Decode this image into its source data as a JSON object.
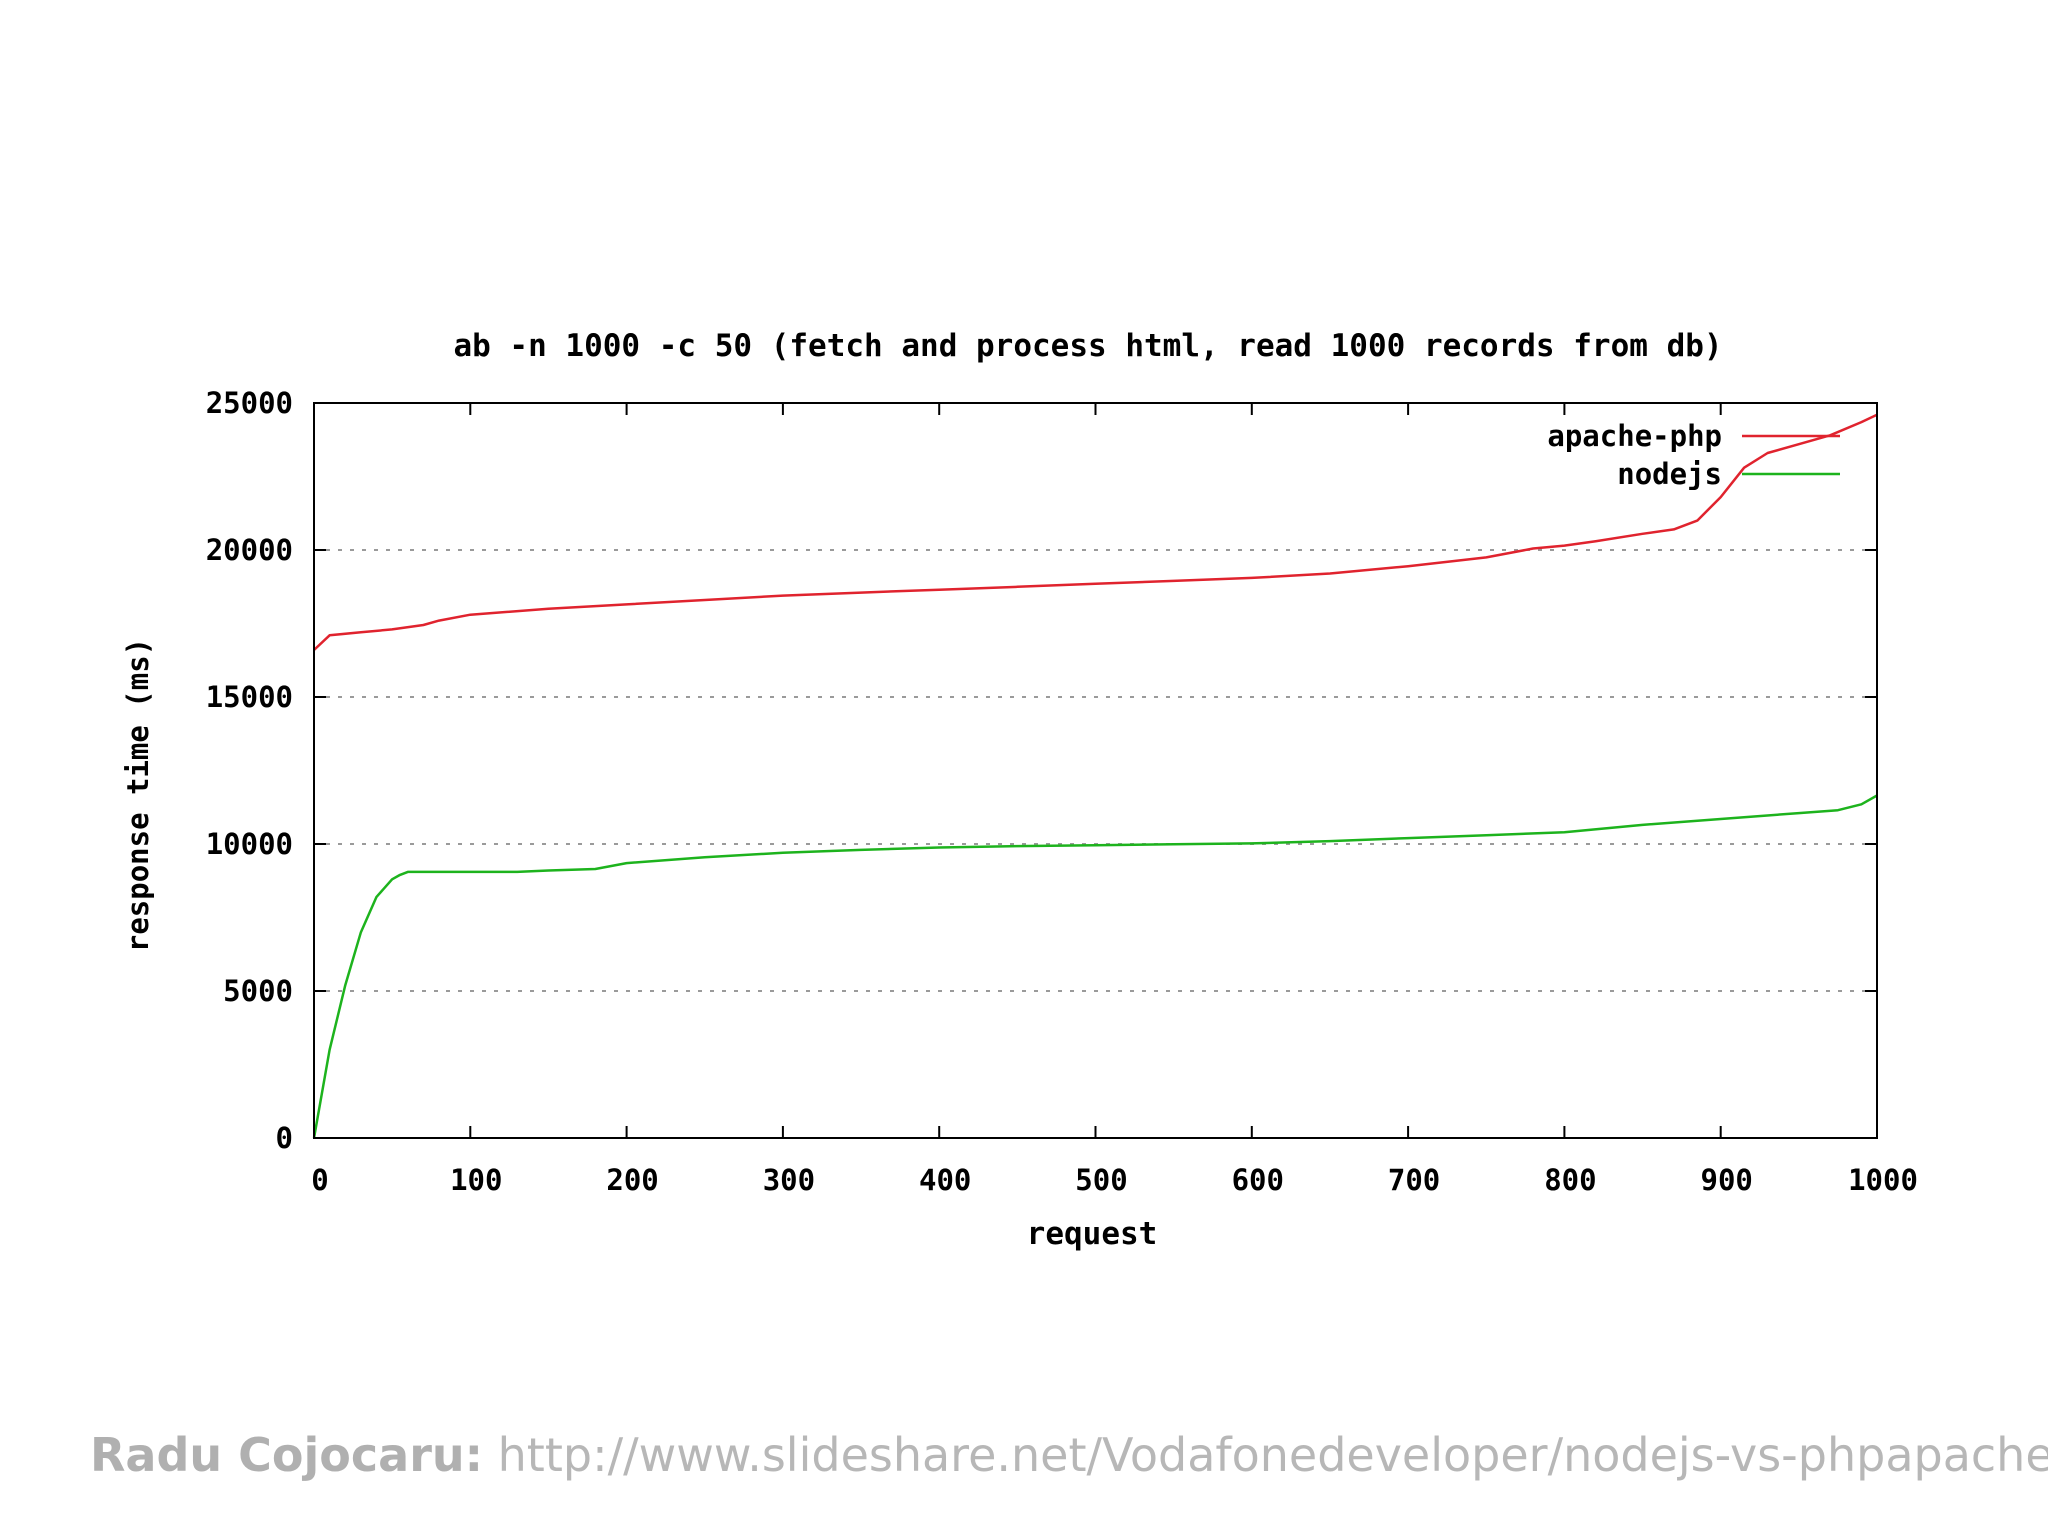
{
  "chart_data": {
    "type": "line",
    "title": "ab -n 1000 -c 50 (fetch and process html, read 1000 records from db)",
    "xlabel": "request",
    "ylabel": "response time (ms)",
    "xlim": [
      0,
      1000
    ],
    "ylim": [
      0,
      25000
    ],
    "xticks": [
      0,
      100,
      200,
      300,
      400,
      500,
      600,
      700,
      800,
      900,
      1000
    ],
    "yticks": [
      0,
      5000,
      10000,
      15000,
      20000,
      25000
    ],
    "grid": "horizontal dashed",
    "legend_position": "top-right",
    "series": [
      {
        "name": "apache-php",
        "color": "#e0232e",
        "x": [
          0,
          10,
          30,
          50,
          70,
          80,
          100,
          150,
          200,
          250,
          300,
          350,
          400,
          450,
          500,
          550,
          600,
          650,
          700,
          750,
          780,
          800,
          820,
          850,
          870,
          885,
          900,
          915,
          930,
          950,
          970,
          990,
          1000
        ],
        "y": [
          16600,
          17100,
          17200,
          17300,
          17450,
          17600,
          17800,
          18000,
          18150,
          18300,
          18450,
          18550,
          18650,
          18750,
          18850,
          18950,
          19050,
          19200,
          19450,
          19750,
          20050,
          20150,
          20300,
          20550,
          20700,
          21000,
          21800,
          22800,
          23300,
          23600,
          23900,
          24350,
          24600
        ]
      },
      {
        "name": "nodejs",
        "color": "#1db31d",
        "x": [
          0,
          10,
          20,
          30,
          40,
          50,
          55,
          60,
          100,
          130,
          150,
          180,
          200,
          250,
          300,
          350,
          400,
          450,
          500,
          550,
          600,
          650,
          700,
          750,
          800,
          850,
          900,
          950,
          975,
          990,
          1000
        ],
        "y": [
          0,
          3000,
          5200,
          7000,
          8200,
          8800,
          8950,
          9050,
          9050,
          9050,
          9100,
          9150,
          9350,
          9550,
          9700,
          9800,
          9880,
          9930,
          9960,
          9990,
          10020,
          10100,
          10200,
          10300,
          10400,
          10650,
          10850,
          11050,
          11150,
          11350,
          11650
        ]
      }
    ]
  },
  "footer": {
    "author": "Radu Cojocaru:",
    "url": "http://www.slideshare.net/Vodafonedeveloper/nodejs-vs-phpapache"
  }
}
